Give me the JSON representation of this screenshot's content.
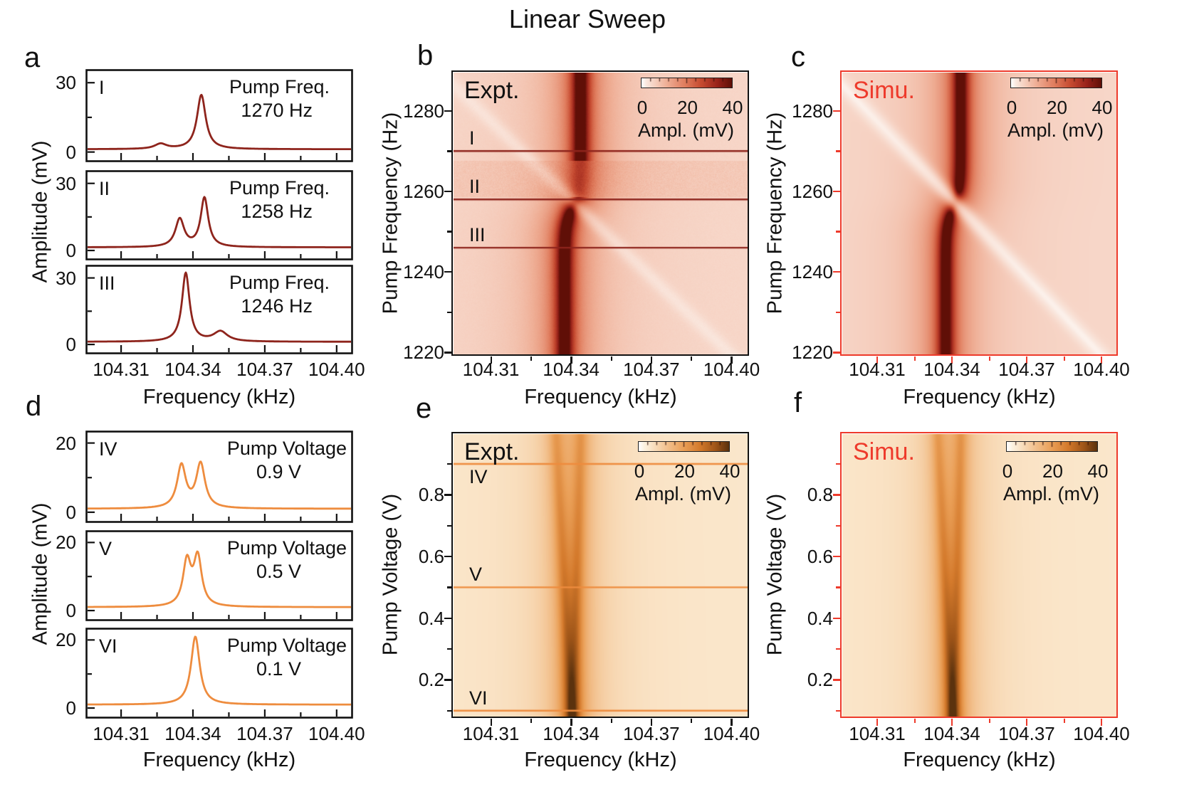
{
  "title": "Linear Sweep",
  "colorbar": {
    "ticks": [
      "0",
      "20",
      "40"
    ],
    "label": "Ampl. (mV)"
  },
  "colors": {
    "dark_red": "#8e241c",
    "orange": "#ee8c3e",
    "sim_red": "#ee3a2b",
    "black": "#111111",
    "maps": {
      "red": [
        [
          0,
          "#ffffff"
        ],
        [
          0.05,
          "#fae8df"
        ],
        [
          0.12,
          "#f7d6c8"
        ],
        [
          0.28,
          "#efae95"
        ],
        [
          0.48,
          "#e07d5e"
        ],
        [
          0.66,
          "#c64b31"
        ],
        [
          0.84,
          "#99231a"
        ],
        [
          1,
          "#600f07"
        ]
      ],
      "orange": [
        [
          0,
          "#ffffff"
        ],
        [
          0.06,
          "#fdf2e0"
        ],
        [
          0.14,
          "#fae4c7"
        ],
        [
          0.3,
          "#f3c493"
        ],
        [
          0.5,
          "#ea9f57"
        ],
        [
          0.68,
          "#d47a2c"
        ],
        [
          0.86,
          "#9d5418"
        ],
        [
          1,
          "#5b320e"
        ]
      ]
    }
  },
  "chart_data": {
    "type": "composite",
    "x_axis": {
      "label": "Frequency (kHz)",
      "min": 104.296,
      "max": 104.406,
      "ticks": [
        104.31,
        104.34,
        104.37,
        104.4
      ],
      "tick_labels": [
        "104.31",
        "104.34",
        "104.37",
        "104.40"
      ],
      "minor_ticks": [
        104.325,
        104.355,
        104.385
      ]
    },
    "amplitude_colorbar": {
      "min_mv": 0,
      "max_mv": 40,
      "ticks_mv": [
        0,
        20,
        40
      ]
    },
    "panels": {
      "a": {
        "letter": "a",
        "kind": "line",
        "color_key": "dark_red",
        "ylabel": "Amplitude (mV)",
        "ymin": -3.5,
        "ymax": 35,
        "yticks": [
          0,
          30
        ],
        "ytick_labels": [
          "0",
          "30"
        ],
        "y_minor": 15,
        "ann_margin": 30,
        "val_pad": 24,
        "subplots": [
          {
            "id": "I",
            "label": "Pump Freq.",
            "value": "1270 Hz",
            "pump_hz": 1270,
            "baseline_mv": 1.2,
            "peaks": [
              {
                "c": 104.3265,
                "h": 2.2,
                "w": 0.003
              },
              {
                "c": 104.3435,
                "h": 23.5,
                "w": 0.0022
              }
            ]
          },
          {
            "id": "II",
            "label": "Pump Freq.",
            "value": "1258 Hz",
            "pump_hz": 1258,
            "baseline_mv": 1.4,
            "peaks": [
              {
                "c": 104.3345,
                "h": 12.5,
                "w": 0.0022
              },
              {
                "c": 104.3448,
                "h": 22,
                "w": 0.0019
              }
            ]
          },
          {
            "id": "III",
            "label": "Pump Freq.",
            "value": "1246 Hz",
            "pump_hz": 1246,
            "baseline_mv": 1.2,
            "peaks": [
              {
                "c": 104.337,
                "h": 31,
                "w": 0.0019
              },
              {
                "c": 104.3515,
                "h": 4.5,
                "w": 0.0035
              }
            ]
          }
        ]
      },
      "b": {
        "letter": "b",
        "kind": "heat",
        "variant": "freq",
        "corner": "Expt.",
        "corner_color_key": "black",
        "frame_color_key": "black",
        "tick_color_key": "black",
        "cmap": "red",
        "cut_color_key": "dark_red",
        "colorbar": true,
        "yaxis": {
          "label": "Pump Frequency (Hz)",
          "min": 1219.5,
          "max": 1289.5,
          "ticks": [
            1220,
            1240,
            1260,
            1280
          ],
          "tick_labels": [
            "1220",
            "1240",
            "1260",
            "1280"
          ],
          "minor_ticks": [
            1230,
            1250,
            1270
          ]
        },
        "model": {
          "center_khz": 104.3405,
          "branch_split_khz": 0.003,
          "crossing_hz": 1256,
          "crossing_width_hz": 5,
          "band_amp_mv": 42,
          "band_hwhm_khz": 0.003,
          "halo_amp_mv": 9,
          "halo_hwhm_khz": 0.013,
          "baseline_mv": 5,
          "diagonal": {
            "x_ref_khz": 104.34,
            "ref_hz": 1258,
            "slope_khz_per_hz": -0.00155,
            "hwhm_khz": 0.004,
            "depth": 0.5
          },
          "noise_band_hz": [
            1258.5,
            1267.5
          ]
        },
        "cuts": [
          {
            "label": "I",
            "y": 1270
          },
          {
            "label": "II",
            "y": 1258
          },
          {
            "label": "III",
            "y": 1246
          }
        ]
      },
      "c": {
        "letter": "c",
        "kind": "heat",
        "variant": "freq",
        "corner": "Simu.",
        "corner_color_key": "sim_red",
        "frame_color_key": "sim_red",
        "tick_color_key": "sim_red",
        "cmap": "red",
        "cut_color_key": "dark_red",
        "colorbar": true,
        "yaxis": {
          "label": "Pump Frequency (Hz)",
          "min": 1219.5,
          "max": 1289.5,
          "ticks": [
            1220,
            1240,
            1260,
            1280
          ],
          "tick_labels": [
            "1220",
            "1240",
            "1260",
            "1280"
          ],
          "minor_ticks": [
            1230,
            1250,
            1270
          ]
        },
        "model": {
          "center_khz": 104.3405,
          "branch_split_khz": 0.003,
          "crossing_hz": 1256,
          "crossing_width_hz": 5,
          "band_amp_mv": 40,
          "band_hwhm_khz": 0.003,
          "halo_amp_mv": 9,
          "halo_hwhm_khz": 0.013,
          "baseline_mv": 5,
          "diagonal": {
            "x_ref_khz": 104.34,
            "ref_hz": 1258,
            "slope_khz_per_hz": -0.00155,
            "hwhm_khz": 0.0045,
            "depth": 0.75
          }
        },
        "cuts": []
      },
      "d": {
        "letter": "d",
        "kind": "line",
        "color_key": "orange",
        "ylabel": "Amplitude (mV)",
        "ymin": -2.5,
        "ymax": 23,
        "yticks": [
          0,
          20
        ],
        "ytick_labels": [
          "0",
          "20"
        ],
        "y_minor": 10,
        "ann_margin": 6,
        "val_pad": 64,
        "subplots": [
          {
            "id": "IV",
            "label": "Pump Voltage",
            "value": "0.9 V",
            "pump_v": 0.9,
            "baseline_mv": 1,
            "peaks": [
              {
                "c": 104.3352,
                "h": 12.3,
                "w": 0.0022
              },
              {
                "c": 104.3432,
                "h": 12.8,
                "w": 0.0022
              }
            ]
          },
          {
            "id": "V",
            "label": "Pump Voltage",
            "value": "0.5 V",
            "pump_v": 0.5,
            "baseline_mv": 1,
            "peaks": [
              {
                "c": 104.3375,
                "h": 13,
                "w": 0.002
              },
              {
                "c": 104.342,
                "h": 14.2,
                "w": 0.002
              }
            ]
          },
          {
            "id": "VI",
            "label": "Pump Voltage",
            "value": "0.1 V",
            "pump_v": 0.1,
            "baseline_mv": 1,
            "peaks": [
              {
                "c": 104.341,
                "h": 20,
                "w": 0.0022
              }
            ]
          }
        ]
      },
      "e": {
        "letter": "e",
        "kind": "heat",
        "variant": "volt",
        "corner": "Expt.",
        "corner_color_key": "black",
        "frame_color_key": "black",
        "tick_color_key": "black",
        "cmap": "orange",
        "cut_color_key": "orange",
        "colorbar": true,
        "yaxis": {
          "label": "Pump Voltage (V)",
          "min": 0.081,
          "max": 0.997,
          "ticks": [
            0.2,
            0.4,
            0.6,
            0.8
          ],
          "tick_labels": [
            "0.2",
            "0.4",
            "0.6",
            "0.8"
          ],
          "minor_ticks": [
            0.1,
            0.3,
            0.5,
            0.7,
            0.9
          ]
        },
        "model": {
          "center_khz": 104.3405,
          "left_split_khz_per_v": 0.0062,
          "right_split_khz_per_v": 0.0032,
          "band_hwhm_khz": 0.0028,
          "amp_base_mv": 12,
          "amp_slope_mv": 8,
          "halo_amp_mv": 7,
          "halo_hwhm_khz": 0.012,
          "baseline_mv": 5.5
        },
        "cuts": [
          {
            "label": "IV",
            "y": 0.9,
            "below": true
          },
          {
            "label": "V",
            "y": 0.5
          },
          {
            "label": "VI",
            "y": 0.1
          }
        ]
      },
      "f": {
        "letter": "f",
        "kind": "heat",
        "variant": "volt",
        "corner": "Simu.",
        "corner_color_key": "sim_red",
        "frame_color_key": "sim_red",
        "tick_color_key": "sim_red",
        "cmap": "orange",
        "cut_color_key": "orange",
        "colorbar": true,
        "yaxis": {
          "label": "Pump Voltage (V)",
          "min": 0.081,
          "max": 0.997,
          "ticks": [
            0.2,
            0.4,
            0.6,
            0.8
          ],
          "tick_labels": [
            "0.2",
            "0.4",
            "0.6",
            "0.8"
          ],
          "minor_ticks": [
            0.1,
            0.3,
            0.5,
            0.7,
            0.9
          ]
        },
        "model": {
          "center_khz": 104.3405,
          "left_split_khz_per_v": 0.0062,
          "right_split_khz_per_v": 0.0032,
          "band_hwhm_khz": 0.0028,
          "amp_base_mv": 12,
          "amp_slope_mv": 8,
          "halo_amp_mv": 7,
          "halo_hwhm_khz": 0.012,
          "baseline_mv": 5.5
        },
        "cuts": []
      }
    }
  }
}
